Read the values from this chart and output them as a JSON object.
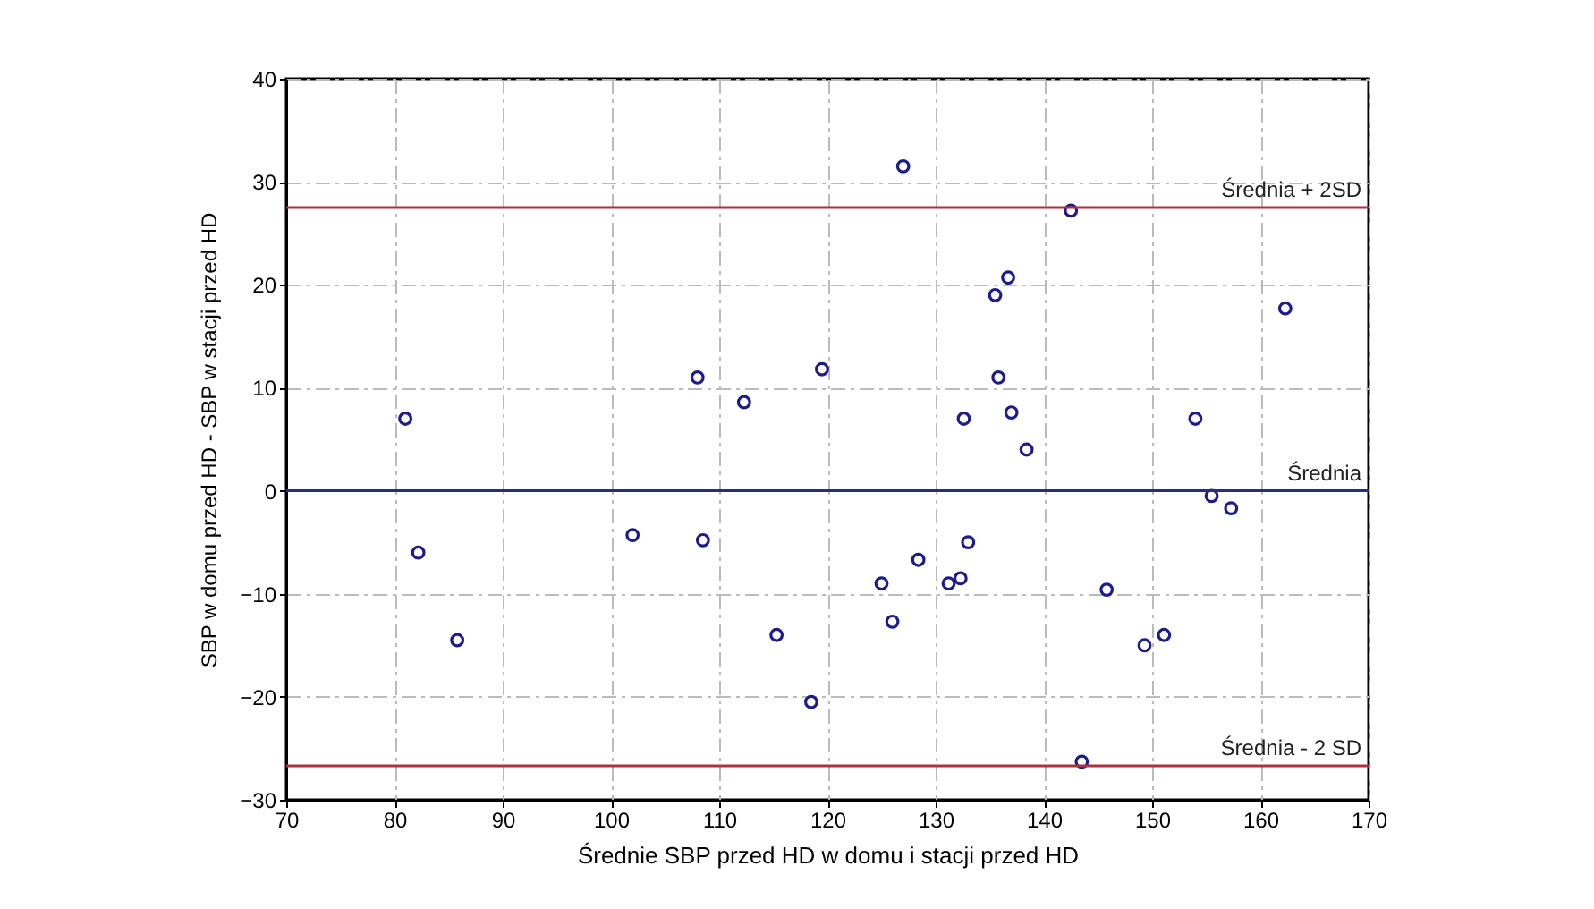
{
  "chart_data": {
    "type": "scatter",
    "xlabel": "Średnie SBP przed HD w domu i stacji przed HD",
    "ylabel": "SBP w domu przed HD - SBP w stacji przed HD",
    "x": [
      81,
      82.2,
      85.8,
      102,
      108,
      108.5,
      112.3,
      115.3,
      118.5,
      119.5,
      125,
      126,
      127,
      128.4,
      131.2,
      132.3,
      132.6,
      133,
      135.5,
      135.8,
      136.7,
      137,
      138.4,
      142.5,
      143.5,
      145.8,
      149.3,
      151.1,
      154,
      155.5,
      157.3,
      162.3
    ],
    "series": [
      {
        "color": "#1c1c8c",
        "values": [
          7,
          -6,
          -14.5,
          -4.3,
          11,
          -4.8,
          8.6,
          -14,
          -20.5,
          11.8,
          -9,
          -12.7,
          31.5,
          -6.7,
          -9,
          -8.5,
          7,
          -5,
          19,
          11,
          20.7,
          7.6,
          4,
          27.2,
          -26.3,
          -9.6,
          -15,
          -14,
          7,
          -0.5,
          -1.7,
          17.7
        ]
      }
    ],
    "marker": "circle",
    "grid": true,
    "xlim": [
      70,
      170
    ],
    "xticks": [
      70,
      80,
      90,
      100,
      110,
      120,
      130,
      140,
      150,
      160,
      170
    ],
    "ylim": [
      -30,
      40
    ],
    "yticks": [
      -30,
      -20,
      -10,
      0,
      10,
      20,
      30,
      40
    ],
    "ref_lines": [
      {
        "axis": "y",
        "value": 27.5,
        "label": "Średnia + 2SD",
        "color": "#b03040"
      },
      {
        "axis": "y",
        "value": 0,
        "label": "Średnia",
        "color": "#2a2a8a"
      },
      {
        "axis": "y",
        "value": -26.7,
        "label": "Średnia - 2 SD",
        "color": "#b03040"
      }
    ]
  }
}
